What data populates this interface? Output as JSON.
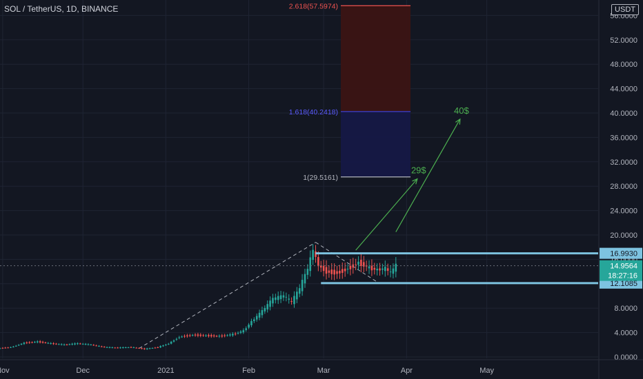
{
  "header": {
    "symbol_title": "SOL / TetherUS, 1D, BINANCE"
  },
  "price_axis": {
    "unit_badge": "USDT"
  },
  "colors": {
    "background": "#131722",
    "grid": "#1f2433",
    "bull": "#26a69a",
    "bear": "#ef5350",
    "fib_top_line": "#ef5350",
    "fib_top_fill": "#3b1414",
    "fib_mid_line": "#3f3fd0",
    "fib_mid_fill": "#151846",
    "fib_base_line": "#b2b5be",
    "level_line": "#7dc3e0",
    "target_arrow": "#4caf50",
    "axis_text": "#b2b5be"
  },
  "chart_data": {
    "type": "candlestick",
    "title": "SOL / TetherUS, 1D, BINANCE",
    "y_axis": {
      "ylim": [
        0,
        58
      ],
      "ticks": [
        {
          "value": 0,
          "label": "0.0000"
        },
        {
          "value": 4,
          "label": "4.0000"
        },
        {
          "value": 8,
          "label": "8.0000"
        },
        {
          "value": 12,
          "label": "12.0000"
        },
        {
          "value": 16,
          "label": "16.0000"
        },
        {
          "value": 20,
          "label": "20.0000"
        },
        {
          "value": 24,
          "label": "24.0000"
        },
        {
          "value": 28,
          "label": "28.0000"
        },
        {
          "value": 32,
          "label": "32.0000"
        },
        {
          "value": 36,
          "label": "36.0000"
        },
        {
          "value": 40,
          "label": "40.0000"
        },
        {
          "value": 44,
          "label": "44.0000"
        },
        {
          "value": 48,
          "label": "48.0000"
        },
        {
          "value": 52,
          "label": "52.0000"
        },
        {
          "value": 56,
          "label": "56.0000"
        }
      ]
    },
    "x_axis": {
      "range": [
        "2020-10-31",
        "2021-05-31"
      ],
      "ticks": [
        {
          "date": "2020-11-01",
          "label": "Nov"
        },
        {
          "date": "2020-12-01",
          "label": "Dec"
        },
        {
          "date": "2021-01-01",
          "label": "2021"
        },
        {
          "date": "2021-02-01",
          "label": "Feb"
        },
        {
          "date": "2021-03-01",
          "label": "Mar"
        },
        {
          "date": "2021-04-01",
          "label": "Apr"
        },
        {
          "date": "2021-05-01",
          "label": "May"
        }
      ]
    },
    "price_series": {
      "name": "SOL/USDT close (approx.)",
      "points": [
        [
          "2020-10-31",
          1.4
        ],
        [
          "2020-11-05",
          1.6
        ],
        [
          "2020-11-10",
          2.3
        ],
        [
          "2020-11-15",
          2.5
        ],
        [
          "2020-11-20",
          2.2
        ],
        [
          "2020-11-25",
          2.0
        ],
        [
          "2020-11-30",
          2.2
        ],
        [
          "2020-12-05",
          2.0
        ],
        [
          "2020-12-10",
          1.6
        ],
        [
          "2020-12-15",
          1.5
        ],
        [
          "2020-12-20",
          1.6
        ],
        [
          "2020-12-25",
          1.3
        ],
        [
          "2020-12-30",
          1.6
        ],
        [
          "2021-01-03",
          2.2
        ],
        [
          "2021-01-07",
          3.3
        ],
        [
          "2021-01-12",
          3.6
        ],
        [
          "2021-01-17",
          3.5
        ],
        [
          "2021-01-22",
          3.4
        ],
        [
          "2021-01-27",
          3.7
        ],
        [
          "2021-01-31",
          4.3
        ],
        [
          "2021-02-03",
          5.8
        ],
        [
          "2021-02-07",
          7.5
        ],
        [
          "2021-02-11",
          9.5
        ],
        [
          "2021-02-15",
          10.0
        ],
        [
          "2021-02-18",
          9.0
        ],
        [
          "2021-02-21",
          11.2
        ],
        [
          "2021-02-24",
          14.5
        ],
        [
          "2021-02-26",
          17.5
        ],
        [
          "2021-02-28",
          15.0
        ],
        [
          "2021-03-03",
          14.0
        ],
        [
          "2021-03-07",
          13.8
        ],
        [
          "2021-03-11",
          14.5
        ],
        [
          "2021-03-15",
          15.5
        ],
        [
          "2021-03-19",
          14.6
        ],
        [
          "2021-03-22",
          14.3
        ],
        [
          "2021-03-25",
          14.5
        ],
        [
          "2021-03-27",
          13.8
        ],
        [
          "2021-03-29",
          14.96
        ]
      ]
    },
    "fibonacci_extension": [
      {
        "label": "2.618(57.5974)",
        "value": 57.5974
      },
      {
        "label": "1.618(40.2418)",
        "value": 40.2418
      },
      {
        "label": "1(29.5161)",
        "value": 29.5161
      }
    ],
    "horizontal_levels": [
      {
        "label": "16.9930",
        "value": 16.993
      },
      {
        "label": "12.1085",
        "value": 12.1085
      }
    ],
    "current_price": {
      "label": "14.9564",
      "value": 14.9564,
      "countdown": "18:27:16"
    },
    "trend_lines": [
      {
        "from": [
          "2020-12-22",
          1.4
        ],
        "to": [
          "2021-02-26",
          18.8
        ]
      },
      {
        "from": [
          "2021-02-26",
          18.8
        ],
        "to": [
          "2021-03-21",
          12.3
        ]
      }
    ],
    "targets": [
      {
        "label": "29$",
        "from": [
          "2021-03-13",
          17.5
        ],
        "to": [
          "2021-04-05",
          29.2
        ]
      },
      {
        "label": "40$",
        "from": [
          "2021-03-28",
          20.5
        ],
        "to": [
          "2021-04-21",
          39.0
        ]
      }
    ]
  }
}
